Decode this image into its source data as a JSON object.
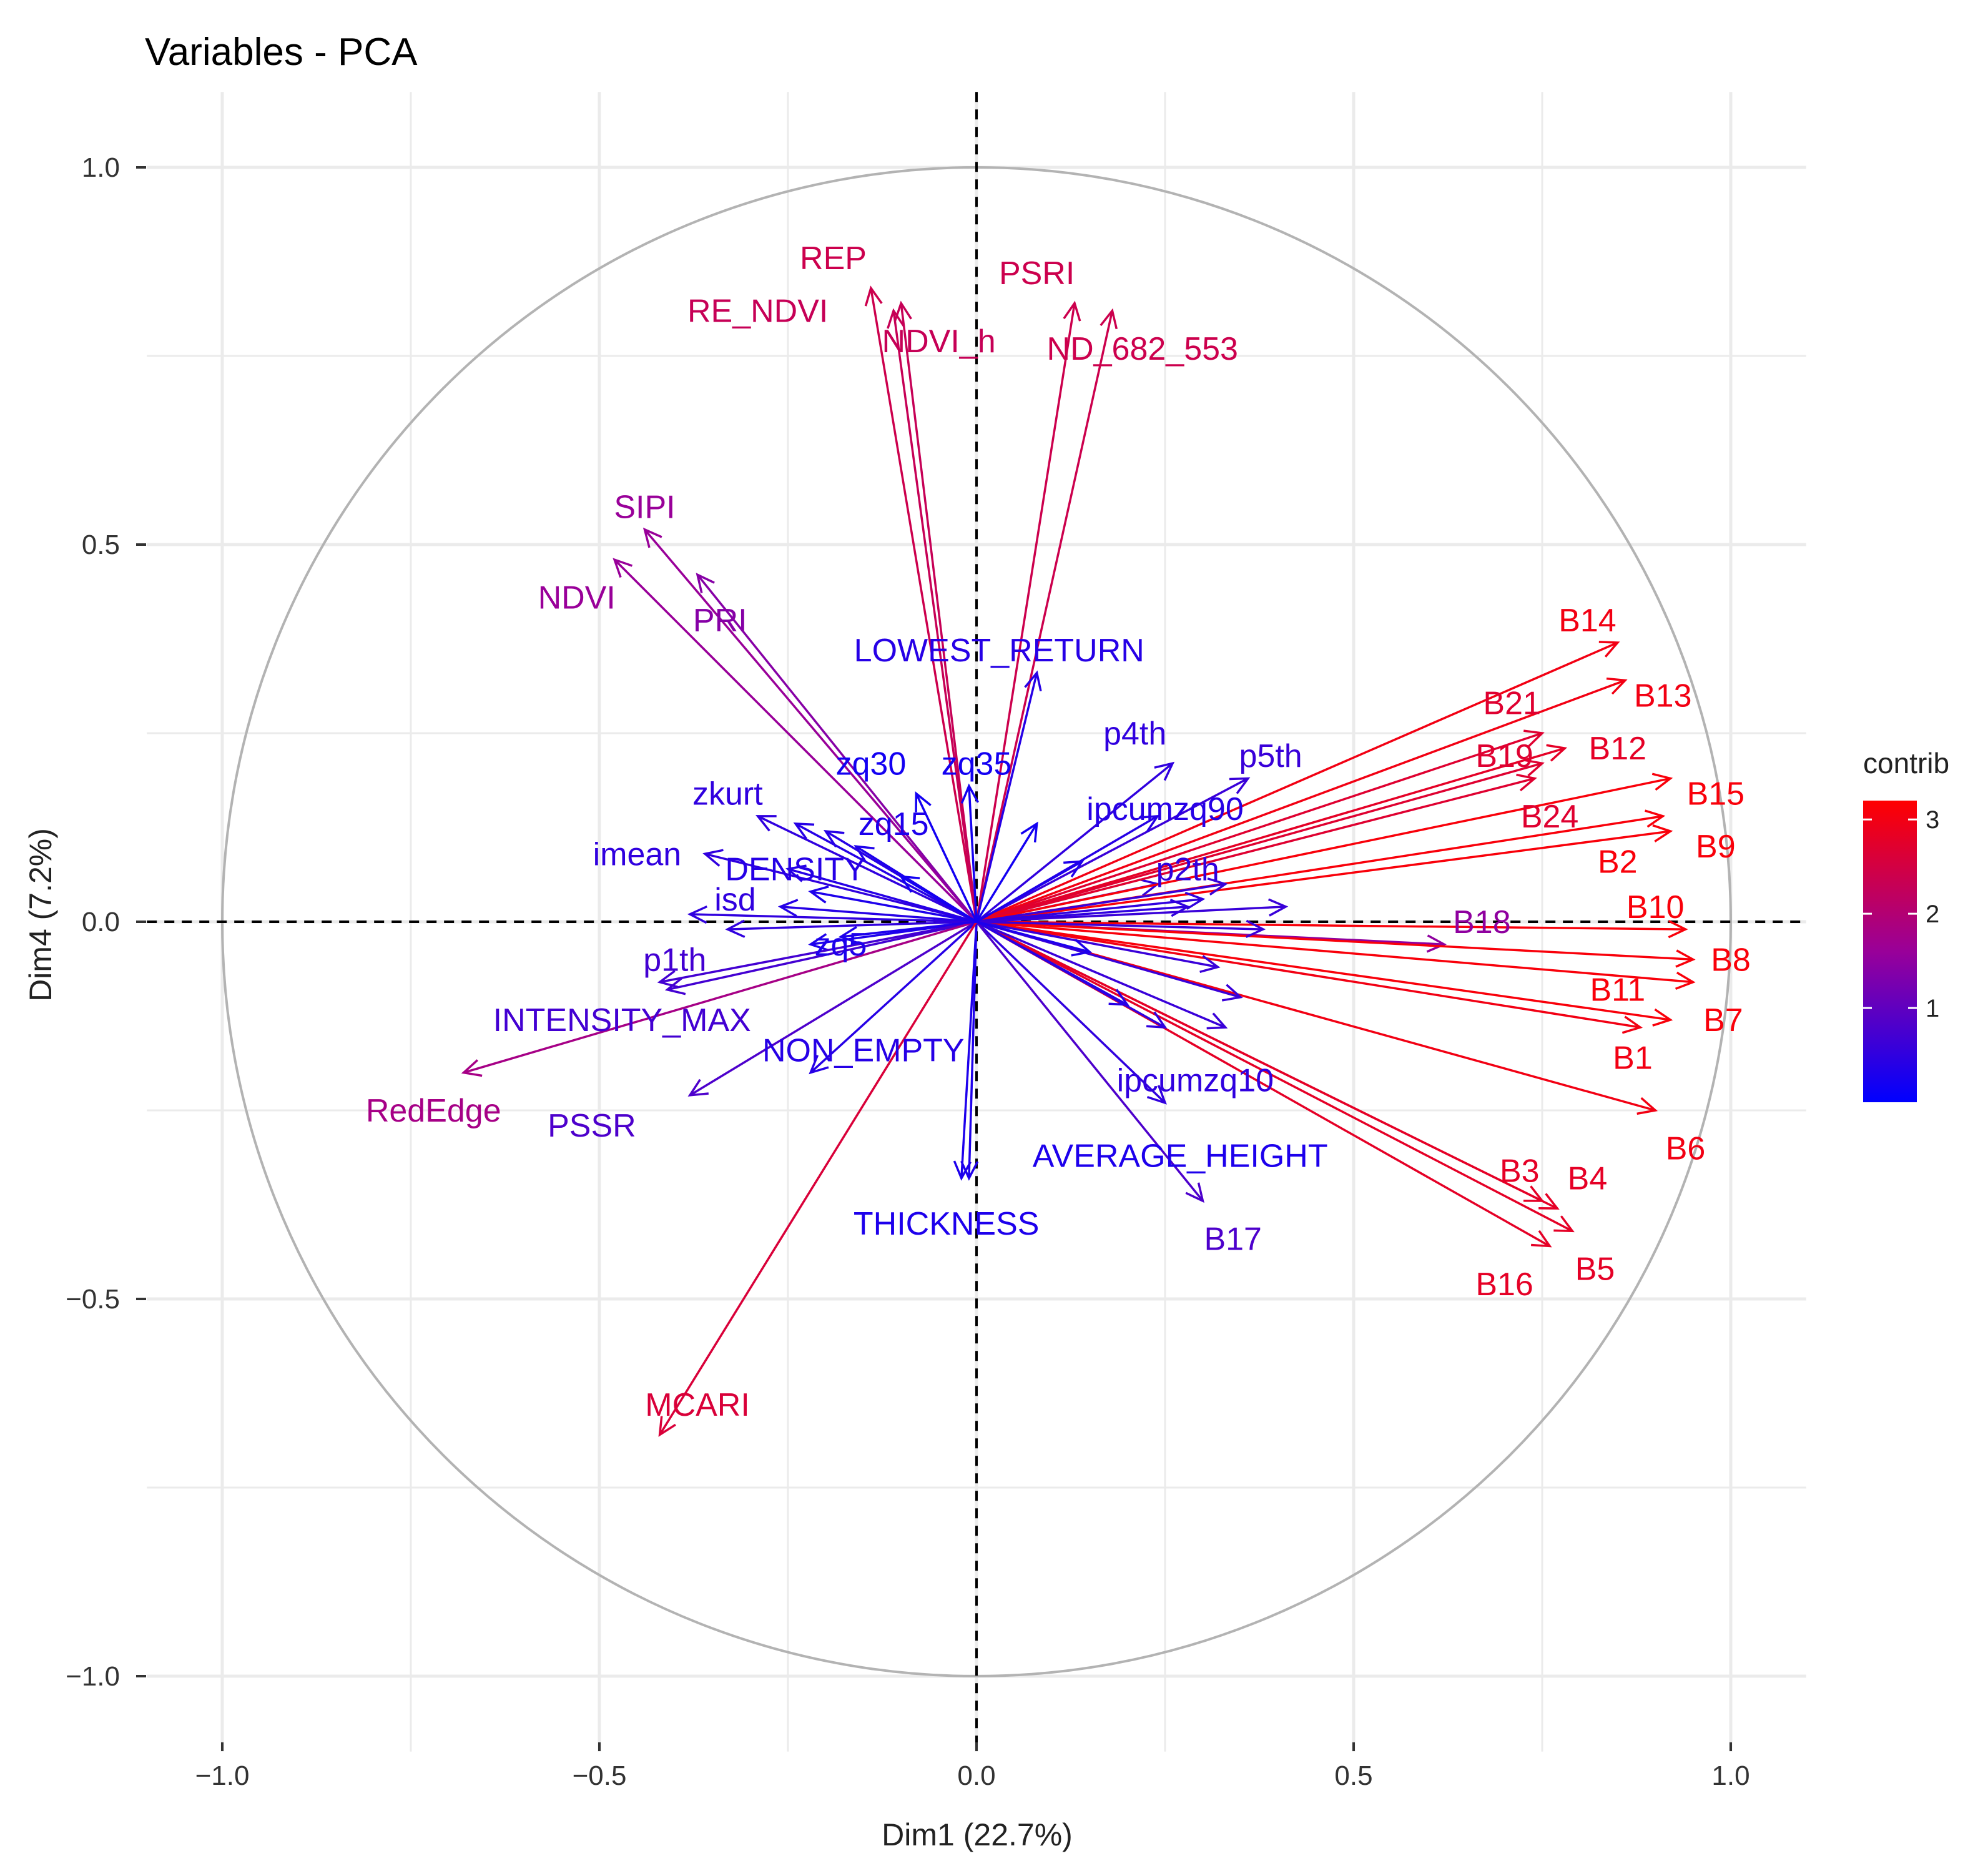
{
  "chart_data": {
    "type": "scatter",
    "subtype": "pca-variable-correlation-circle",
    "title": "Variables - PCA",
    "xlabel": "Dim1 (22.7%)",
    "ylabel": "Dim4 (7.2%)",
    "xlim": [
      -1.1,
      1.1
    ],
    "ylim": [
      -1.1,
      1.1
    ],
    "xticks": [
      "−1.0",
      "−0.5",
      "0.0",
      "0.5",
      "1.0"
    ],
    "yticks": [
      "−1.0",
      "−0.5",
      "0.0",
      "0.5",
      "1.0"
    ],
    "xtick_values": [
      -1.0,
      -0.5,
      0.0,
      0.5,
      1.0
    ],
    "ytick_values": [
      -1.0,
      -0.5,
      0.0,
      0.5,
      1.0
    ],
    "legend": {
      "title": "contrib",
      "ticks": [
        "1",
        "2",
        "3"
      ],
      "tick_values": [
        1,
        2,
        3
      ],
      "range": [
        0,
        3.2
      ],
      "position": "right"
    },
    "colors": {
      "low": "#0000ff",
      "mid": "#990099",
      "high": "#ff0000"
    },
    "variables": [
      {
        "name": "REP",
        "x": -0.14,
        "y": 0.84,
        "contrib": 2.4,
        "label": [
          -0.19,
          0.88
        ]
      },
      {
        "name": "RE_NDVI",
        "x": -0.1,
        "y": 0.82,
        "contrib": 2.3,
        "label": [
          -0.29,
          0.81
        ]
      },
      {
        "name": "NDVI_h",
        "x": -0.11,
        "y": 0.81,
        "contrib": 2.3,
        "label": [
          -0.05,
          0.77
        ]
      },
      {
        "name": "PSRI",
        "x": 0.13,
        "y": 0.82,
        "contrib": 2.4,
        "label": [
          0.08,
          0.86
        ]
      },
      {
        "name": "ND_682_553",
        "x": 0.18,
        "y": 0.81,
        "contrib": 2.4,
        "label": [
          0.22,
          0.76
        ]
      },
      {
        "name": "SIPI",
        "x": -0.44,
        "y": 0.52,
        "contrib": 1.6,
        "label": [
          -0.44,
          0.55
        ]
      },
      {
        "name": "NDVI",
        "x": -0.48,
        "y": 0.48,
        "contrib": 1.6,
        "label": [
          -0.53,
          0.43
        ]
      },
      {
        "name": "PRI",
        "x": -0.37,
        "y": 0.46,
        "contrib": 1.4,
        "label": [
          -0.34,
          0.4
        ]
      },
      {
        "name": "LOWEST_RETURN",
        "x": 0.08,
        "y": 0.33,
        "contrib": 0.4,
        "label": [
          0.03,
          0.36
        ]
      },
      {
        "name": "p4th",
        "x": 0.26,
        "y": 0.21,
        "contrib": 0.5,
        "label": [
          0.21,
          0.25
        ]
      },
      {
        "name": "p5th",
        "x": 0.36,
        "y": 0.19,
        "contrib": 0.6,
        "label": [
          0.39,
          0.22
        ]
      },
      {
        "name": "ipcumzq90",
        "x": 0.24,
        "y": 0.14,
        "contrib": 0.4,
        "label": [
          0.25,
          0.15
        ]
      },
      {
        "name": "zq30",
        "x": -0.08,
        "y": 0.17,
        "contrib": 0.2,
        "label": [
          -0.14,
          0.21
        ]
      },
      {
        "name": "zq35",
        "x": -0.01,
        "y": 0.18,
        "contrib": 0.2,
        "label": [
          0.0,
          0.21
        ]
      },
      {
        "name": "zkurt",
        "x": -0.29,
        "y": 0.14,
        "contrib": 0.5,
        "label": [
          -0.33,
          0.17
        ]
      },
      {
        "name": "zq15",
        "x": -0.16,
        "y": 0.1,
        "contrib": 0.3,
        "label": [
          -0.11,
          0.13
        ]
      },
      {
        "name": "imean",
        "x": -0.36,
        "y": 0.09,
        "contrib": 0.5,
        "label": [
          -0.45,
          0.09
        ]
      },
      {
        "name": "DENSITY",
        "x": -0.25,
        "y": 0.07,
        "contrib": 0.4,
        "label": [
          -0.24,
          0.07
        ]
      },
      {
        "name": "isd",
        "x": -0.38,
        "y": 0.01,
        "contrib": 0.5,
        "label": [
          -0.32,
          0.03
        ]
      },
      {
        "name": "p2th",
        "x": 0.24,
        "y": 0.05,
        "contrib": 0.5,
        "label": [
          0.28,
          0.07
        ]
      },
      {
        "name": "zq5",
        "x": -0.22,
        "y": -0.03,
        "contrib": 0.3,
        "label": [
          -0.18,
          -0.03
        ]
      },
      {
        "name": "p1th",
        "x": -0.42,
        "y": -0.08,
        "contrib": 0.7,
        "label": [
          -0.4,
          -0.05
        ]
      },
      {
        "name": "INTENSITY_MAX",
        "x": -0.41,
        "y": -0.09,
        "contrib": 0.7,
        "label": [
          -0.47,
          -0.13
        ]
      },
      {
        "name": "RedEdge",
        "x": -0.68,
        "y": -0.2,
        "contrib": 1.8,
        "label": [
          -0.72,
          -0.25
        ]
      },
      {
        "name": "PSSR",
        "x": -0.38,
        "y": -0.23,
        "contrib": 0.8,
        "label": [
          -0.51,
          -0.27
        ]
      },
      {
        "name": "NON_EMPTY",
        "x": -0.22,
        "y": -0.2,
        "contrib": 0.4,
        "label": [
          -0.15,
          -0.17
        ]
      },
      {
        "name": "ipcumzq10",
        "x": 0.25,
        "y": -0.24,
        "contrib": 0.5,
        "label": [
          0.29,
          -0.21
        ]
      },
      {
        "name": "AVERAGE_HEIGHT",
        "x": -0.01,
        "y": -0.34,
        "contrib": 0.3,
        "label": [
          0.27,
          -0.31
        ]
      },
      {
        "name": "THICKNESS",
        "x": -0.02,
        "y": -0.34,
        "contrib": 0.3,
        "label": [
          -0.04,
          -0.4
        ]
      },
      {
        "name": "B17",
        "x": 0.3,
        "y": -0.37,
        "contrib": 0.8,
        "label": [
          0.34,
          -0.42
        ]
      },
      {
        "name": "MCARI",
        "x": -0.42,
        "y": -0.68,
        "contrib": 2.6,
        "label": [
          -0.37,
          -0.64
        ]
      },
      {
        "name": "B14",
        "x": 0.85,
        "y": 0.37,
        "contrib": 3.0,
        "label": [
          0.81,
          0.4
        ]
      },
      {
        "name": "B13",
        "x": 0.86,
        "y": 0.32,
        "contrib": 3.0,
        "label": [
          0.91,
          0.3
        ]
      },
      {
        "name": "B21",
        "x": 0.75,
        "y": 0.25,
        "contrib": 2.7,
        "label": [
          0.71,
          0.29
        ]
      },
      {
        "name": "B12",
        "x": 0.78,
        "y": 0.23,
        "contrib": 2.8,
        "label": [
          0.85,
          0.23
        ]
      },
      {
        "name": "B19",
        "x": 0.75,
        "y": 0.21,
        "contrib": 2.7,
        "label": [
          0.7,
          0.22
        ]
      },
      {
        "name": "B24",
        "x": 0.74,
        "y": 0.19,
        "contrib": 2.7,
        "label": [
          0.76,
          0.14
        ]
      },
      {
        "name": "B15",
        "x": 0.92,
        "y": 0.19,
        "contrib": 3.1,
        "label": [
          0.98,
          0.17
        ]
      },
      {
        "name": "B2",
        "x": 0.91,
        "y": 0.14,
        "contrib": 3.1,
        "label": [
          0.85,
          0.08
        ]
      },
      {
        "name": "B9",
        "x": 0.92,
        "y": 0.12,
        "contrib": 3.1,
        "label": [
          0.98,
          0.1
        ]
      },
      {
        "name": "B18",
        "x": 0.62,
        "y": -0.03,
        "contrib": 1.5,
        "label": [
          0.67,
          0.0
        ]
      },
      {
        "name": "B10",
        "x": 0.94,
        "y": -0.01,
        "contrib": 3.1,
        "label": [
          0.9,
          0.02
        ]
      },
      {
        "name": "B8",
        "x": 0.95,
        "y": -0.05,
        "contrib": 3.1,
        "label": [
          1.0,
          -0.05
        ]
      },
      {
        "name": "B11",
        "x": 0.95,
        "y": -0.08,
        "contrib": 3.1,
        "label": [
          0.85,
          -0.09
        ]
      },
      {
        "name": "B7",
        "x": 0.92,
        "y": -0.13,
        "contrib": 3.1,
        "label": [
          0.99,
          -0.13
        ]
      },
      {
        "name": "B1",
        "x": 0.88,
        "y": -0.14,
        "contrib": 3.0,
        "label": [
          0.87,
          -0.18
        ]
      },
      {
        "name": "B6",
        "x": 0.9,
        "y": -0.25,
        "contrib": 3.0,
        "label": [
          0.94,
          -0.3
        ]
      },
      {
        "name": "B3",
        "x": 0.75,
        "y": -0.37,
        "contrib": 2.8,
        "label": [
          0.72,
          -0.33
        ]
      },
      {
        "name": "B4",
        "x": 0.77,
        "y": -0.38,
        "contrib": 2.8,
        "label": [
          0.81,
          -0.34
        ]
      },
      {
        "name": "B5",
        "x": 0.79,
        "y": -0.41,
        "contrib": 2.8,
        "label": [
          0.82,
          -0.46
        ]
      },
      {
        "name": "B16",
        "x": 0.76,
        "y": -0.43,
        "contrib": 2.8,
        "label": [
          0.7,
          -0.48
        ]
      },
      {
        "name": "",
        "x": 0.33,
        "y": 0.05,
        "contrib": 0.6
      },
      {
        "name": "",
        "x": 0.3,
        "y": 0.03,
        "contrib": 0.5
      },
      {
        "name": "",
        "x": 0.28,
        "y": 0.02,
        "contrib": 0.5
      },
      {
        "name": "",
        "x": 0.41,
        "y": 0.02,
        "contrib": 0.6
      },
      {
        "name": "",
        "x": 0.38,
        "y": -0.01,
        "contrib": 0.6
      },
      {
        "name": "",
        "x": 0.32,
        "y": -0.06,
        "contrib": 0.6
      },
      {
        "name": "",
        "x": 0.35,
        "y": -0.1,
        "contrib": 0.6
      },
      {
        "name": "",
        "x": 0.33,
        "y": -0.14,
        "contrib": 0.6
      },
      {
        "name": "",
        "x": 0.25,
        "y": -0.14,
        "contrib": 0.5
      },
      {
        "name": "",
        "x": 0.2,
        "y": -0.11,
        "contrib": 0.4
      },
      {
        "name": "",
        "x": 0.15,
        "y": -0.04,
        "contrib": 0.3
      },
      {
        "name": "",
        "x": 0.14,
        "y": 0.08,
        "contrib": 0.3
      },
      {
        "name": "",
        "x": 0.08,
        "y": 0.13,
        "contrib": 0.2
      },
      {
        "name": "",
        "x": -0.2,
        "y": 0.12,
        "contrib": 0.4
      },
      {
        "name": "",
        "x": -0.24,
        "y": 0.13,
        "contrib": 0.4
      },
      {
        "name": "",
        "x": -0.26,
        "y": 0.02,
        "contrib": 0.4
      },
      {
        "name": "",
        "x": -0.22,
        "y": 0.04,
        "contrib": 0.3
      },
      {
        "name": "",
        "x": -0.33,
        "y": -0.01,
        "contrib": 0.5
      },
      {
        "name": "",
        "x": -0.18,
        "y": -0.02,
        "contrib": 0.3
      },
      {
        "name": "",
        "x": -0.1,
        "y": 0.06,
        "contrib": 0.2
      }
    ]
  }
}
